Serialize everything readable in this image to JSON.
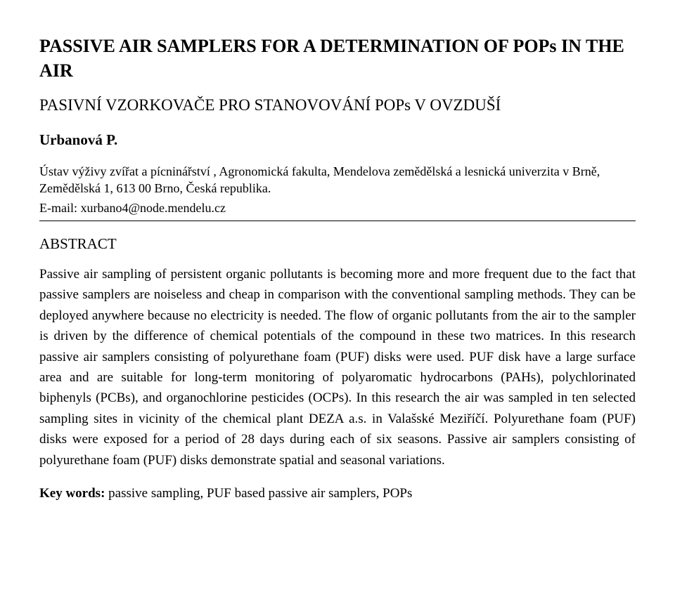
{
  "title_en": "PASSIVE AIR SAMPLERS FOR A DETERMINATION OF POPs IN THE AIR",
  "title_cz": "PASIVNÍ VZORKOVAČE PRO STANOVOVÁNÍ POPs V OVZDUŠÍ",
  "author": "Urbanová P.",
  "affiliation": "Ústav výživy zvířat a pícninářství , Agronomická fakulta, Mendelova zemědělská a lesnická univerzita v Brně, Zemědělská 1, 613 00 Brno, Česká republika.",
  "email": "E-mail: xurbano4@node.mendelu.cz",
  "abstract_heading": "ABSTRACT",
  "abstract_body": "Passive air sampling of persistent organic pollutants is becoming more and more frequent due to the fact that passive samplers are noiseless and cheap in comparison with the conventional sampling methods. They can be deployed anywhere because no electricity is needed. The flow of organic pollutants from the air to the sampler is driven by the difference of chemical potentials of the compound in these two matrices. In this research passive air samplers consisting of polyurethane foam (PUF) disks were used. PUF disk have a large surface area and are suitable for long-term monitoring of polyaromatic hydrocarbons (PAHs), polychlorinated biphenyls (PCBs), and organochlorine pesticides (OCPs). In this research the air was sampled in ten selected sampling sites in vicinity of the chemical plant DEZA a.s. in Valašské Meziříčí. Polyurethane foam (PUF) disks were exposed for a period of 28 days during each of six seasons. Passive air samplers consisting of polyurethane foam (PUF) disks demonstrate spatial and seasonal variations.",
  "keywords_label": "Key words:",
  "keywords_text": " passive sampling, PUF based passive air samplers, POPs"
}
